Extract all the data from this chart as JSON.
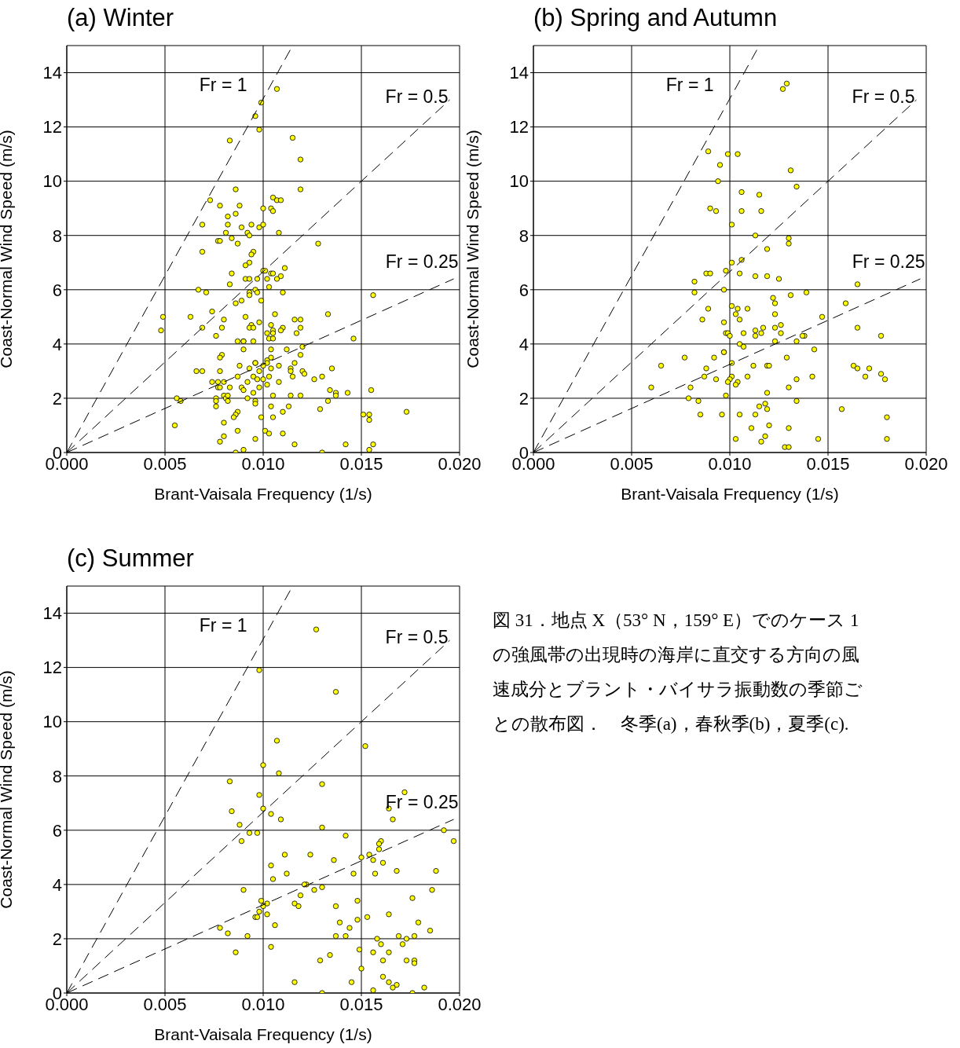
{
  "chart_data": [
    {
      "type": "scatter",
      "title": "(a) Winter",
      "xlabel": "Brant-Vaisala Frequency (1/s)",
      "ylabel": "Coast-Normal Wind Speed (m/s)",
      "xlim": [
        0,
        0.02
      ],
      "ylim": [
        0,
        15
      ],
      "xticks": [
        {
          "value": 0,
          "label": "0.000"
        },
        {
          "value": 0.005,
          "label": "0.005"
        },
        {
          "value": 0.01,
          "label": "0.010"
        },
        {
          "value": 0.015,
          "label": "0.015"
        },
        {
          "value": 0.02,
          "label": "0.020"
        }
      ],
      "yticks": [
        0,
        2,
        4,
        6,
        8,
        10,
        12,
        14
      ],
      "grid": true,
      "marker": "circle",
      "series": [
        {
          "type": "scatter",
          "color": "#ffff00",
          "x": [
            0.0107,
            0.0099,
            0.0096,
            0.0098,
            0.0083,
            0.0115,
            0.0119,
            0.0119,
            0.0073,
            0.0086,
            0.0078,
            0.0088,
            0.0105,
            0.0107,
            0.0109,
            0.01,
            0.0104,
            0.0105,
            0.0082,
            0.0086,
            0.0069,
            0.0082,
            0.0089,
            0.0094,
            0.0098,
            0.01,
            0.0108,
            0.0081,
            0.0092,
            0.0093,
            0.0077,
            0.0078,
            0.0084,
            0.0087,
            0.0128,
            0.0069,
            0.0095,
            0.0094,
            0.0093,
            0.0091,
            0.01,
            0.0101,
            0.0111,
            0.0104,
            0.0105,
            0.0109,
            0.0084,
            0.0091,
            0.0093,
            0.0097,
            0.0102,
            0.0107,
            0.0083,
            0.0067,
            0.0096,
            0.0103,
            0.0071,
            0.0093,
            0.0093,
            0.0097,
            0.011,
            0.0156,
            0.0089,
            0.0086,
            0.0099,
            0.0074,
            0.0049,
            0.0063,
            0.0091,
            0.0106,
            0.0133,
            0.008,
            0.0098,
            0.0116,
            0.0119,
            0.0048,
            0.0069,
            0.0079,
            0.0094,
            0.0093,
            0.0095,
            0.0104,
            0.0105,
            0.011,
            0.0109,
            0.0119,
            0.0102,
            0.0105,
            0.0117,
            0.0103,
            0.0105,
            0.0146,
            0.0076,
            0.0087,
            0.009,
            0.009,
            0.0095,
            0.012,
            0.0104,
            0.009,
            0.0112,
            0.0079,
            0.0119,
            0.0104,
            0.0078,
            0.0102,
            0.0102,
            0.0096,
            0.0096,
            0.0116,
            0.0088,
            0.01,
            0.0108,
            0.0135,
            0.0093,
            0.0104,
            0.0114,
            0.0066,
            0.0069,
            0.0078,
            0.0098,
            0.0114,
            0.012,
            0.0121,
            0.0087,
            0.0095,
            0.0103,
            0.0115,
            0.013,
            0.0126,
            0.0097,
            0.0074,
            0.0077,
            0.008,
            0.0092,
            0.01,
            0.0108,
            0.0077,
            0.0078,
            0.0083,
            0.0089,
            0.009,
            0.0098,
            0.0102,
            0.0095,
            0.0134,
            0.0143,
            0.0155,
            0.008,
            0.0081,
            0.0082,
            0.0092,
            0.0105,
            0.0114,
            0.0119,
            0.0137,
            0.0137,
            0.0056,
            0.0058,
            0.0076,
            0.0076,
            0.0076,
            0.0082,
            0.0096,
            0.0096,
            0.0133,
            0.0113,
            0.0104,
            0.0129,
            0.0087,
            0.0086,
            0.0085,
            0.011,
            0.0099,
            0.0105,
            0.0151,
            0.0154,
            0.0154,
            0.0173,
            0.0055,
            0.008,
            0.0087,
            0.0101,
            0.0103,
            0.011,
            0.008,
            0.0096,
            0.0078,
            0.0116,
            0.0142,
            0.0156,
            0.009,
            0.0154,
            0.0086,
            0.013
          ],
          "values": [
            13.4,
            12.9,
            12.4,
            11.9,
            11.5,
            11.6,
            10.8,
            9.7,
            9.3,
            9.7,
            9.1,
            9.1,
            9.4,
            9.3,
            9.3,
            9.0,
            9.0,
            8.9,
            8.7,
            8.8,
            8.4,
            8.4,
            8.3,
            8.4,
            8.3,
            8.4,
            8.1,
            8.1,
            8.1,
            8.0,
            7.8,
            7.8,
            7.9,
            7.7,
            7.7,
            7.4,
            7.4,
            7.3,
            7.0,
            6.9,
            6.7,
            6.7,
            6.8,
            6.6,
            6.6,
            6.5,
            6.6,
            6.4,
            6.4,
            6.4,
            6.4,
            6.4,
            6.2,
            6.0,
            6.0,
            6.1,
            5.9,
            5.9,
            5.8,
            5.9,
            5.9,
            5.8,
            5.6,
            5.5,
            5.6,
            5.2,
            5.0,
            5.0,
            5.0,
            5.1,
            5.1,
            4.9,
            4.8,
            4.9,
            4.9,
            4.5,
            4.6,
            4.6,
            4.7,
            4.6,
            4.6,
            4.7,
            4.5,
            4.6,
            4.5,
            4.6,
            4.4,
            4.4,
            4.4,
            4.2,
            4.2,
            4.2,
            4.3,
            4.1,
            4.1,
            4.1,
            4.1,
            3.9,
            3.8,
            3.8,
            3.8,
            3.6,
            3.6,
            3.5,
            3.5,
            3.4,
            3.3,
            3.3,
            3.3,
            3.3,
            3.2,
            3.2,
            3.2,
            3.1,
            3.1,
            3.1,
            3.1,
            3.0,
            3.0,
            3.0,
            3.0,
            3.0,
            3.0,
            2.9,
            2.8,
            2.8,
            2.8,
            2.8,
            2.8,
            2.7,
            2.7,
            2.6,
            2.6,
            2.6,
            2.6,
            2.7,
            2.6,
            2.4,
            2.4,
            2.4,
            2.4,
            2.3,
            2.4,
            2.5,
            2.2,
            2.3,
            2.2,
            2.3,
            2.1,
            2.0,
            2.1,
            2.0,
            2.1,
            2.1,
            2.1,
            2.2,
            2.1,
            2.0,
            1.9,
            2.0,
            1.9,
            1.7,
            1.9,
            1.9,
            1.8,
            1.9,
            1.7,
            1.7,
            1.6,
            1.5,
            1.4,
            1.3,
            1.5,
            1.3,
            1.3,
            1.4,
            1.4,
            1.2,
            1.5,
            1.0,
            1.1,
            0.8,
            0.8,
            0.7,
            0.7,
            0.6,
            0.5,
            0.4,
            0.3,
            0.3,
            0.3,
            0.1,
            0.1,
            0.0,
            0.0
          ]
        },
        {
          "type": "line",
          "name": "Fr = 1",
          "color": "#000000",
          "line_style": "dashed",
          "marker": "none",
          "x": [
            0,
            0.0115
          ],
          "values": [
            0,
            15
          ]
        },
        {
          "type": "line",
          "name": "Fr = 0.5",
          "color": "#000000",
          "line_style": "dashed",
          "marker": "none",
          "x": [
            0,
            0.0195
          ],
          "values": [
            0,
            13
          ]
        },
        {
          "type": "line",
          "name": "Fr = 0.25",
          "color": "#000000",
          "line_style": "dashed",
          "marker": "none",
          "x": [
            0,
            0.0197
          ],
          "values": [
            0,
            6.4
          ]
        }
      ]
    },
    {
      "type": "scatter",
      "title": "(b) Spring and Autumn",
      "xlabel": "Brant-Vaisala Frequency (1/s)",
      "ylabel": "Coast-Normal Wind Speed (m/s)",
      "xlim": [
        0,
        0.02
      ],
      "ylim": [
        0,
        15
      ],
      "xticks": [
        {
          "value": 0,
          "label": "0.000"
        },
        {
          "value": 0.005,
          "label": "0.005"
        },
        {
          "value": 0.01,
          "label": "0.010"
        },
        {
          "value": 0.015,
          "label": "0.015"
        },
        {
          "value": 0.02,
          "label": "0.020"
        }
      ],
      "yticks": [
        0,
        2,
        4,
        6,
        8,
        10,
        12,
        14
      ],
      "grid": true,
      "marker": "circle",
      "series": [
        {
          "type": "scatter",
          "color": "#ffff00",
          "x": [
            0.0129,
            0.0127,
            0.0089,
            0.0099,
            0.0104,
            0.0095,
            0.0131,
            0.0094,
            0.0134,
            0.0106,
            0.0115,
            0.009,
            0.0093,
            0.0106,
            0.0116,
            0.0101,
            0.0113,
            0.013,
            0.013,
            0.0119,
            0.0106,
            0.0101,
            0.0088,
            0.009,
            0.0098,
            0.0105,
            0.0113,
            0.0119,
            0.0125,
            0.0082,
            0.0165,
            0.0082,
            0.0097,
            0.0131,
            0.0139,
            0.0122,
            0.0123,
            0.0159,
            0.0101,
            0.0104,
            0.0109,
            0.0089,
            0.0103,
            0.0123,
            0.0147,
            0.0086,
            0.0105,
            0.0097,
            0.0126,
            0.0117,
            0.0113,
            0.0123,
            0.0165,
            0.0107,
            0.0098,
            0.0099,
            0.01,
            0.0113,
            0.0116,
            0.0126,
            0.0138,
            0.0137,
            0.0177,
            0.0123,
            0.0134,
            0.0105,
            0.0107,
            0.0143,
            0.0097,
            0.0097,
            0.0077,
            0.0092,
            0.0129,
            0.0101,
            0.0065,
            0.0112,
            0.0119,
            0.012,
            0.0163,
            0.0165,
            0.0171,
            0.0088,
            0.0177,
            0.0101,
            0.0109,
            0.0142,
            0.0087,
            0.0169,
            0.0093,
            0.0134,
            0.0179,
            0.01,
            0.0099,
            0.0104,
            0.0103,
            0.013,
            0.006,
            0.008,
            0.0098,
            0.0119,
            0.0079,
            0.0134,
            0.0084,
            0.0115,
            0.0118,
            0.0119,
            0.0157,
            0.0085,
            0.0096,
            0.0105,
            0.0113,
            0.018,
            0.0111,
            0.012,
            0.013,
            0.0118,
            0.0145,
            0.0103,
            0.0116,
            0.018,
            0.0128,
            0.013
          ],
          "values": [
            13.6,
            13.4,
            11.1,
            11.0,
            11.0,
            10.6,
            10.4,
            10.0,
            9.8,
            9.6,
            9.5,
            9.0,
            8.9,
            8.9,
            8.9,
            8.4,
            8.0,
            7.9,
            7.7,
            7.5,
            7.1,
            7.0,
            6.6,
            6.6,
            6.7,
            6.6,
            6.5,
            6.5,
            6.4,
            6.3,
            6.2,
            5.9,
            6.0,
            5.8,
            5.9,
            5.7,
            5.5,
            5.5,
            5.4,
            5.3,
            5.3,
            5.3,
            5.1,
            5.1,
            5.0,
            4.9,
            4.9,
            4.8,
            4.7,
            4.6,
            4.5,
            4.6,
            4.6,
            4.4,
            4.4,
            4.4,
            4.3,
            4.3,
            4.4,
            4.4,
            4.3,
            4.3,
            4.3,
            4.1,
            4.1,
            4.0,
            3.9,
            3.8,
            3.7,
            3.7,
            3.5,
            3.5,
            3.5,
            3.3,
            3.2,
            3.2,
            3.2,
            3.2,
            3.2,
            3.1,
            3.1,
            3.1,
            2.9,
            2.8,
            2.8,
            2.8,
            2.8,
            2.8,
            2.7,
            2.7,
            2.7,
            2.7,
            2.6,
            2.6,
            2.5,
            2.4,
            2.4,
            2.4,
            2.1,
            2.2,
            2.0,
            1.9,
            1.9,
            1.7,
            1.8,
            1.6,
            1.6,
            1.4,
            1.4,
            1.4,
            1.4,
            1.3,
            0.9,
            1.0,
            0.9,
            0.6,
            0.5,
            0.5,
            0.4,
            0.5,
            0.2,
            0.2
          ]
        },
        {
          "type": "line",
          "name": "Fr = 1",
          "color": "#000000",
          "line_style": "dashed",
          "marker": "none",
          "x": [
            0,
            0.0115
          ],
          "values": [
            0,
            15
          ]
        },
        {
          "type": "line",
          "name": "Fr = 0.5",
          "color": "#000000",
          "line_style": "dashed",
          "marker": "none",
          "x": [
            0,
            0.0195
          ],
          "values": [
            0,
            13
          ]
        },
        {
          "type": "line",
          "name": "Fr = 0.25",
          "color": "#000000",
          "line_style": "dashed",
          "marker": "none",
          "x": [
            0,
            0.0197
          ],
          "values": [
            0,
            6.4
          ]
        }
      ]
    },
    {
      "type": "scatter",
      "title": "(c) Summer",
      "xlabel": "Brant-Vaisala Frequency (1/s)",
      "ylabel": "Coast-Normal Wind Speed (m/s)",
      "xlim": [
        0,
        0.02
      ],
      "ylim": [
        0,
        15
      ],
      "xticks": [
        {
          "value": 0,
          "label": "0.000"
        },
        {
          "value": 0.005,
          "label": "0.005"
        },
        {
          "value": 0.01,
          "label": "0.010"
        },
        {
          "value": 0.015,
          "label": "0.015"
        },
        {
          "value": 0.02,
          "label": "0.020"
        }
      ],
      "yticks": [
        0,
        2,
        4,
        6,
        8,
        10,
        12,
        14
      ],
      "grid": true,
      "marker": "circle",
      "series": [
        {
          "type": "scatter",
          "color": "#ffff00",
          "x": [
            0.0127,
            0.0098,
            0.0137,
            0.0107,
            0.0152,
            0.01,
            0.0108,
            0.0083,
            0.013,
            0.0172,
            0.0098,
            0.0084,
            0.0164,
            0.01,
            0.0104,
            0.0109,
            0.0166,
            0.0088,
            0.013,
            0.0192,
            0.0093,
            0.0097,
            0.0197,
            0.0089,
            0.0142,
            0.016,
            0.0159,
            0.0159,
            0.0111,
            0.0124,
            0.0154,
            0.015,
            0.0156,
            0.0136,
            0.0104,
            0.0161,
            0.0168,
            0.0188,
            0.0112,
            0.0146,
            0.0157,
            0.0105,
            0.0122,
            0.0121,
            0.0126,
            0.013,
            0.009,
            0.0186,
            0.0119,
            0.0176,
            0.0099,
            0.0148,
            0.0116,
            0.0118,
            0.01,
            0.0102,
            0.0137,
            0.0098,
            0.0164,
            0.0102,
            0.0153,
            0.0096,
            0.0097,
            0.0139,
            0.0148,
            0.0179,
            0.0106,
            0.0144,
            0.0078,
            0.0185,
            0.0082,
            0.0092,
            0.0137,
            0.0142,
            0.0169,
            0.0177,
            0.0158,
            0.0173,
            0.016,
            0.0171,
            0.0104,
            0.0149,
            0.0086,
            0.0156,
            0.0164,
            0.0134,
            0.0129,
            0.0161,
            0.0173,
            0.0177,
            0.0177,
            0.015,
            0.0161,
            0.0116,
            0.0145,
            0.0164,
            0.0168,
            0.0182,
            0.0166,
            0.0156,
            0.013,
            0.0176
          ],
          "values": [
            13.4,
            11.9,
            11.1,
            9.3,
            9.1,
            8.4,
            8.1,
            7.8,
            7.7,
            7.4,
            7.3,
            6.7,
            6.8,
            6.8,
            6.6,
            6.4,
            6.4,
            6.2,
            6.1,
            6.0,
            5.9,
            5.9,
            5.6,
            5.6,
            5.8,
            5.6,
            5.5,
            5.3,
            5.1,
            5.1,
            5.1,
            5.0,
            4.9,
            4.9,
            4.7,
            4.8,
            4.5,
            4.5,
            4.4,
            4.4,
            4.4,
            4.2,
            4.0,
            4.0,
            3.8,
            3.9,
            3.8,
            3.8,
            3.6,
            3.5,
            3.4,
            3.4,
            3.3,
            3.2,
            3.2,
            3.3,
            3.2,
            3.0,
            2.9,
            2.9,
            2.8,
            2.8,
            2.8,
            2.6,
            2.7,
            2.6,
            2.5,
            2.4,
            2.4,
            2.3,
            2.2,
            2.1,
            2.1,
            2.1,
            2.1,
            2.1,
            2.0,
            2.0,
            1.8,
            1.8,
            1.7,
            1.6,
            1.5,
            1.5,
            1.5,
            1.4,
            1.2,
            1.2,
            1.2,
            1.2,
            1.1,
            0.9,
            0.6,
            0.4,
            0.4,
            0.4,
            0.3,
            0.2,
            0.2,
            0.1,
            0.0,
            0.0
          ]
        },
        {
          "type": "line",
          "name": "Fr = 1",
          "color": "#000000",
          "line_style": "dashed",
          "marker": "none",
          "x": [
            0,
            0.0115
          ],
          "values": [
            0,
            15
          ]
        },
        {
          "type": "line",
          "name": "Fr = 0.5",
          "color": "#000000",
          "line_style": "dashed",
          "marker": "none",
          "x": [
            0,
            0.0195
          ],
          "values": [
            0,
            13
          ]
        },
        {
          "type": "line",
          "name": "Fr = 0.25",
          "color": "#000000",
          "line_style": "dashed",
          "marker": "none",
          "x": [
            0,
            0.0197
          ],
          "values": [
            0,
            6.4
          ]
        }
      ]
    },
    {
      "type": "other",
      "annotations": [
        "図 31．地点 X（53° N，159° E）でのケース 1 の強風帯の出現時の海岸に直交する方向の風速成分とブラント・バイサラ振動数の季節ごとの散布図．　冬季(a)，春秋季(b)，夏季(c)."
      ]
    }
  ]
}
